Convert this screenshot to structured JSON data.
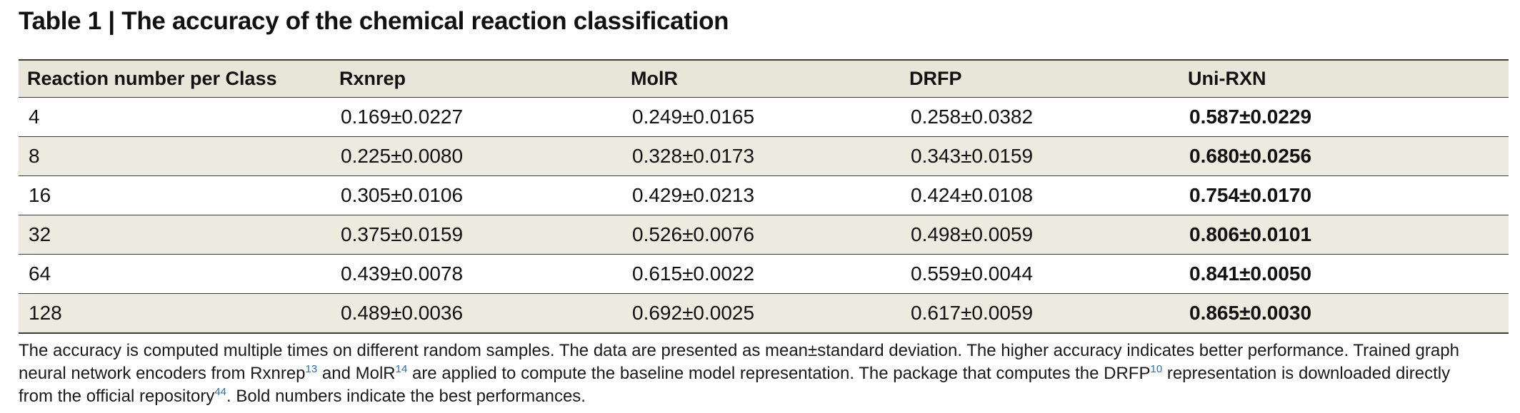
{
  "title": "Table 1 | The accuracy of the chemical reaction classification",
  "table": {
    "headers": [
      "Reaction number per Class",
      "Rxnrep",
      "MolR",
      "DRFP",
      "Uni-RXN"
    ],
    "rows": [
      [
        "4",
        "0.169±0.0227",
        "0.249±0.0165",
        "0.258±0.0382",
        "0.587±0.0229"
      ],
      [
        "8",
        "0.225±0.0080",
        "0.328±0.0173",
        "0.343±0.0159",
        "0.680±0.0256"
      ],
      [
        "16",
        "0.305±0.0106",
        "0.429±0.0213",
        "0.424±0.0108",
        "0.754±0.0170"
      ],
      [
        "32",
        "0.375±0.0159",
        "0.526±0.0076",
        "0.498±0.0059",
        "0.806±0.0101"
      ],
      [
        "64",
        "0.439±0.0078",
        "0.615±0.0022",
        "0.559±0.0044",
        "0.841±0.0050"
      ],
      [
        "128",
        "0.489±0.0036",
        "0.692±0.0025",
        "0.617±0.0059",
        "0.865±0.0030"
      ]
    ]
  },
  "caption": {
    "line1": "The accuracy is computed multiple times on different random samples. The data are presented as mean±standard deviation. The higher accuracy indicates better performance. Trained graph",
    "line2_a": "neural network encoders from Rxnrep",
    "ref_rxnrep": "13",
    "line2_b": " and MolR",
    "ref_molr": "14",
    "line2_c": " are applied to compute the baseline model representation. The package that computes the DRFP",
    "ref_drfp": "10",
    "line2_d": " representation is downloaded directly",
    "line3_a": "from the official repository",
    "ref_repo": "44",
    "line3_b": ". Bold numbers indicate the best performances."
  },
  "colors": {
    "header_bg": "#e8e6d9",
    "stripe_bg": "#ecebdf",
    "rule": "#3a3a3a",
    "reference_link": "#2a6fb0"
  }
}
